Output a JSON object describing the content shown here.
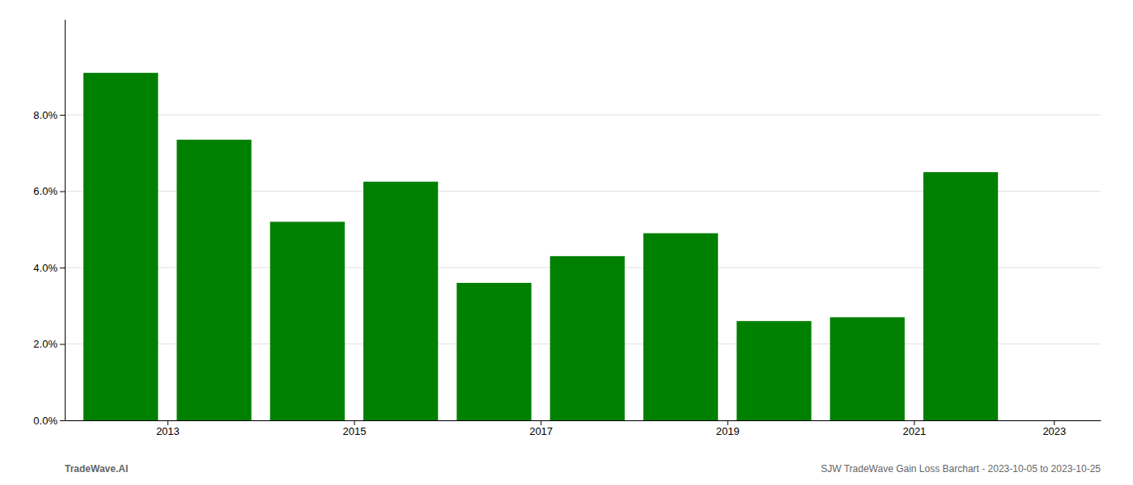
{
  "chart_data": {
    "type": "bar",
    "x": [
      2013,
      2014,
      2015,
      2016,
      2017,
      2018,
      2019,
      2020,
      2021,
      2022
    ],
    "values": [
      0.091,
      0.0735,
      0.052,
      0.0625,
      0.036,
      0.043,
      0.049,
      0.026,
      0.027,
      0.065
    ],
    "color": "#008000",
    "xlim": [
      2012.4,
      2023.5
    ],
    "xticks": [
      {
        "value": 2013.5,
        "label": "2013"
      },
      {
        "value": 2015.5,
        "label": "2015"
      },
      {
        "value": 2017.5,
        "label": "2017"
      },
      {
        "value": 2019.5,
        "label": "2019"
      },
      {
        "value": 2021.5,
        "label": "2021"
      },
      {
        "value": 2023.0,
        "label": "2023"
      }
    ],
    "ylim": [
      0,
      0.105
    ],
    "yticks": [
      {
        "value": 0.0,
        "label": "0.0%"
      },
      {
        "value": 0.02,
        "label": "2.0%"
      },
      {
        "value": 0.04,
        "label": "4.0%"
      },
      {
        "value": 0.06,
        "label": "6.0%"
      },
      {
        "value": 0.08,
        "label": "8.0%"
      }
    ],
    "grid": true,
    "annotations": [
      "TradeWave.AI",
      "SJW TradeWave Gain Loss Barchart - 2023-10-05 to 2023-10-25"
    ]
  }
}
